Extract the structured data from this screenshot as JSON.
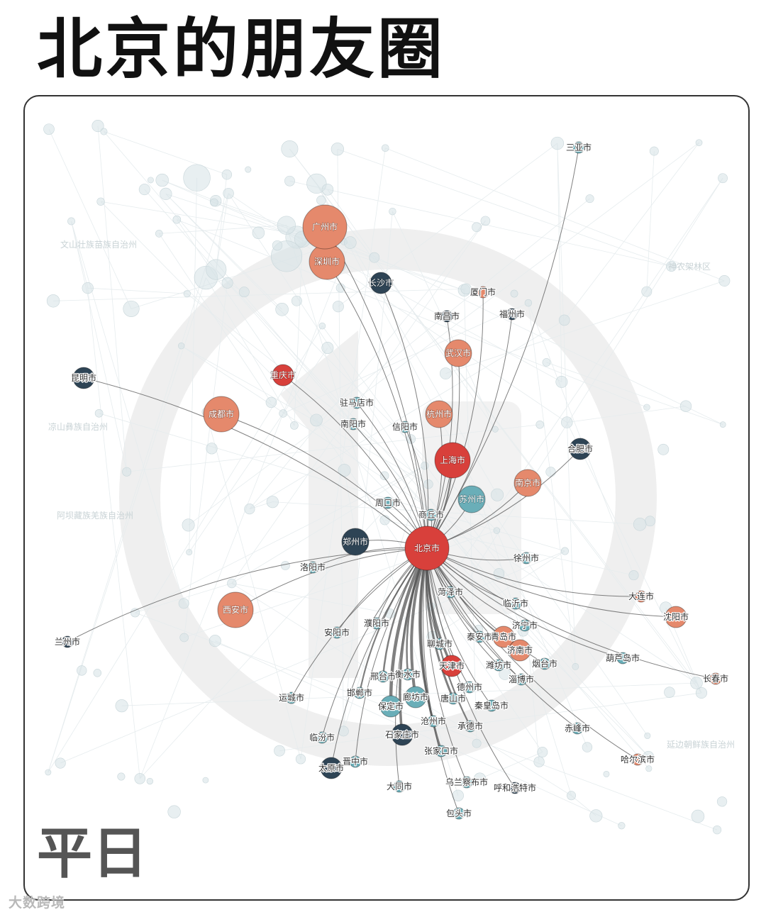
{
  "title": "北京的朋友圈",
  "mode": "平日",
  "watermark": "大数跨境",
  "colors": {
    "red": "#d8403b",
    "orange": "#e5896c",
    "teal": "#6aaeb8",
    "navy": "#2e4455",
    "ghost": "#d6e2e5",
    "edge": "#555555"
  },
  "network": {
    "center": "北京市",
    "nodes": [
      {
        "name": "北京市",
        "color": "red",
        "size": "xl",
        "labelIn": true
      },
      {
        "name": "广州市",
        "color": "orange",
        "size": "xl",
        "labelIn": true
      },
      {
        "name": "深圳市",
        "color": "orange",
        "size": "l",
        "labelIn": true
      },
      {
        "name": "长沙市",
        "color": "navy",
        "size": "s",
        "labelIn": true
      },
      {
        "name": "厦门市",
        "color": "orange",
        "size": "xs"
      },
      {
        "name": "南昌市",
        "color": "navy",
        "size": "xs"
      },
      {
        "name": "福州市",
        "color": "navy",
        "size": "xs"
      },
      {
        "name": "武汉市",
        "color": "orange",
        "size": "m",
        "labelIn": true
      },
      {
        "name": "重庆市",
        "color": "red",
        "size": "s",
        "labelIn": true
      },
      {
        "name": "昆明市",
        "color": "navy",
        "size": "s"
      },
      {
        "name": "成都市",
        "color": "orange",
        "size": "l",
        "labelIn": true
      },
      {
        "name": "驻马店市",
        "color": "teal",
        "size": "xs"
      },
      {
        "name": "南阳市",
        "color": "teal",
        "size": "xs"
      },
      {
        "name": "信阳市",
        "color": "teal",
        "size": "xs"
      },
      {
        "name": "杭州市",
        "color": "orange",
        "size": "m",
        "labelIn": true
      },
      {
        "name": "合肥市",
        "color": "navy",
        "size": "s"
      },
      {
        "name": "上海市",
        "color": "red",
        "size": "l",
        "labelIn": true
      },
      {
        "name": "南京市",
        "color": "orange",
        "size": "m",
        "labelIn": true
      },
      {
        "name": "苏州市",
        "color": "teal",
        "size": "m",
        "labelIn": true
      },
      {
        "name": "周口市",
        "color": "teal",
        "size": "xs"
      },
      {
        "name": "商丘市",
        "color": "teal",
        "size": "xs"
      },
      {
        "name": "郑州市",
        "color": "navy",
        "size": "m",
        "labelIn": true
      },
      {
        "name": "洛阳市",
        "color": "teal",
        "size": "xs"
      },
      {
        "name": "徐州市",
        "color": "teal",
        "size": "xs"
      },
      {
        "name": "菏泽市",
        "color": "teal",
        "size": "xs"
      },
      {
        "name": "西安市",
        "color": "orange",
        "size": "l",
        "labelIn": true
      },
      {
        "name": "大连市",
        "color": "orange",
        "size": "xs"
      },
      {
        "name": "沈阳市",
        "color": "orange",
        "size": "s"
      },
      {
        "name": "临沂市",
        "color": "teal",
        "size": "xs"
      },
      {
        "name": "济宁市",
        "color": "teal",
        "size": "xs"
      },
      {
        "name": "兰州市",
        "color": "navy",
        "size": "xs"
      },
      {
        "name": "濮阳市",
        "color": "teal",
        "size": "xs"
      },
      {
        "name": "安阳市",
        "color": "teal",
        "size": "xs"
      },
      {
        "name": "泰安市",
        "color": "teal",
        "size": "xs"
      },
      {
        "name": "青岛市",
        "color": "orange",
        "size": "s"
      },
      {
        "name": "聊城市",
        "color": "teal",
        "size": "xs"
      },
      {
        "name": "济南市",
        "color": "orange",
        "size": "s"
      },
      {
        "name": "葫芦岛市",
        "color": "teal",
        "size": "xs"
      },
      {
        "name": "天津市",
        "color": "red",
        "size": "s"
      },
      {
        "name": "潍坊市",
        "color": "teal",
        "size": "xs"
      },
      {
        "name": "烟台市",
        "color": "teal",
        "size": "xs"
      },
      {
        "name": "长春市",
        "color": "orange",
        "size": "xs"
      },
      {
        "name": "邢台市",
        "color": "teal",
        "size": "xs"
      },
      {
        "name": "衡水市",
        "color": "teal",
        "size": "xs"
      },
      {
        "name": "淄博市",
        "color": "teal",
        "size": "xs"
      },
      {
        "name": "德州市",
        "color": "teal",
        "size": "xs"
      },
      {
        "name": "运城市",
        "color": "teal",
        "size": "xs"
      },
      {
        "name": "邯郸市",
        "color": "teal",
        "size": "xs"
      },
      {
        "name": "廊坊市",
        "color": "teal",
        "size": "s"
      },
      {
        "name": "唐山市",
        "color": "teal",
        "size": "xs"
      },
      {
        "name": "保定市",
        "color": "teal",
        "size": "s"
      },
      {
        "name": "秦皇岛市",
        "color": "teal",
        "size": "xs"
      },
      {
        "name": "沧州市",
        "color": "teal",
        "size": "xs"
      },
      {
        "name": "承德市",
        "color": "teal",
        "size": "xs"
      },
      {
        "name": "赤峰市",
        "color": "teal",
        "size": "xs"
      },
      {
        "name": "临汾市",
        "color": "teal",
        "size": "xs"
      },
      {
        "name": "石家庄市",
        "color": "navy",
        "size": "s"
      },
      {
        "name": "张家口市",
        "color": "teal",
        "size": "xs"
      },
      {
        "name": "太原市",
        "color": "navy",
        "size": "s"
      },
      {
        "name": "晋中市",
        "color": "teal",
        "size": "xs"
      },
      {
        "name": "哈尔滨市",
        "color": "orange",
        "size": "xs"
      },
      {
        "name": "大同市",
        "color": "teal",
        "size": "xs"
      },
      {
        "name": "乌兰察布市",
        "color": "teal",
        "size": "xs"
      },
      {
        "name": "呼和浩特市",
        "color": "navy",
        "size": "xs"
      },
      {
        "name": "包头市",
        "color": "teal",
        "size": "xs"
      },
      {
        "name": "三亚市",
        "color": "teal",
        "size": "xs"
      }
    ],
    "background_labels": [
      "文山壮族苗族自治州",
      "神农架林区",
      "凉山彝族自治州",
      "阿坝藏族羌族自治州",
      "延边朝鲜族自治州"
    ]
  }
}
